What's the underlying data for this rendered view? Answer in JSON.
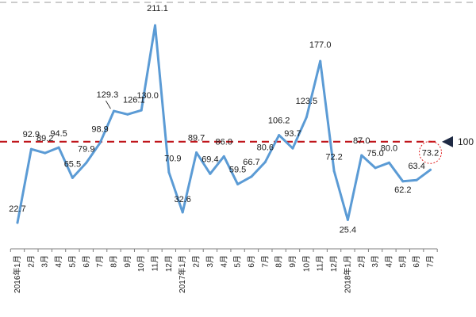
{
  "chart_data": {
    "type": "line",
    "categories": [
      "2016年1月",
      "2月",
      "3月",
      "4月",
      "5月",
      "6月",
      "7月",
      "8月",
      "9月",
      "10月",
      "11月",
      "12月",
      "2017年1月",
      "2月",
      "3月",
      "4月",
      "5月",
      "6月",
      "7月",
      "8月",
      "9月",
      "10月",
      "11月",
      "12月",
      "2018年1月",
      "2月",
      "3月",
      "4月",
      "5月",
      "6月",
      "7月"
    ],
    "values": [
      22.7,
      92.9,
      89.2,
      94.5,
      65.5,
      79.9,
      98.9,
      129.3,
      126.1,
      130.0,
      211.1,
      70.9,
      32.6,
      89.7,
      69.4,
      86.0,
      59.5,
      66.7,
      80.6,
      106.2,
      93.7,
      123.5,
      177.0,
      72.2,
      25.4,
      87.0,
      75.0,
      80.0,
      62.2,
      63.4,
      73.2
    ],
    "data_labels": [
      "22.7",
      "92.9",
      "89.2",
      "94.5",
      "65.5",
      "79.9",
      "98.9",
      "129.3",
      "126.1",
      "130.0",
      "211.1",
      "70.9",
      "32.6",
      "89.7",
      "69.4",
      "86.0",
      "59.5",
      "66.7",
      "80.6",
      "106.2",
      "93.7",
      "123.5",
      "177.0",
      "72.2",
      "25.4",
      "87.0",
      "75.0",
      "80.0",
      "62.2",
      "63.4",
      "73.2"
    ],
    "reference_line": {
      "value": 100,
      "label": "100",
      "color": "#c0151b",
      "style": "dashed"
    },
    "highlight": {
      "index": 30,
      "style": "dashed-circle",
      "color": "#e02020"
    },
    "ylim": [
      0,
      220
    ],
    "grid": false,
    "legend": "none",
    "title": "",
    "xlabel": "",
    "ylabel": "",
    "colors": {
      "line": "#5b9bd5",
      "axis": "#7f7f7f"
    }
  }
}
